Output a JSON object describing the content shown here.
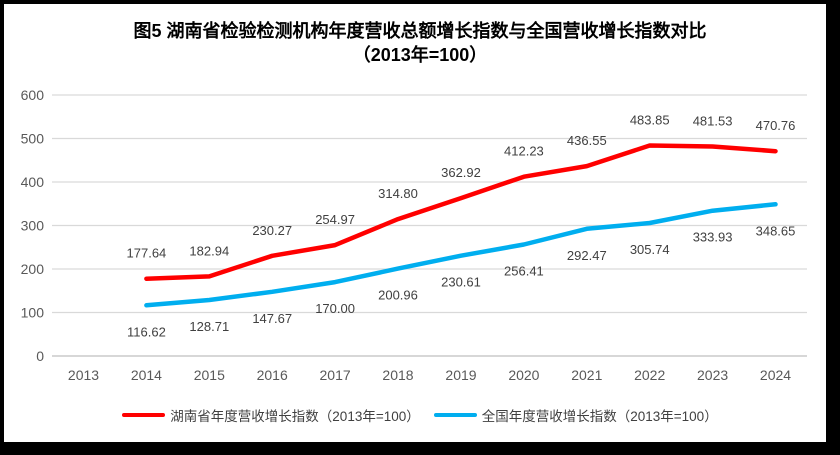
{
  "window": {
    "frame_background": "#000000",
    "canvas_background": "#ffffff"
  },
  "chart_data": {
    "type": "line",
    "title": "图5 湖南省检验检测机构年度营收总额增长指数与全国营收增长指数对比",
    "subtitle": "（2013年=100）",
    "categories": [
      "2013",
      "2014",
      "2015",
      "2016",
      "2017",
      "2018",
      "2019",
      "2020",
      "2021",
      "2022",
      "2023",
      "2024"
    ],
    "ylim": [
      0,
      600
    ],
    "y_ticks": [
      0,
      100,
      200,
      300,
      400,
      500,
      600
    ],
    "grid": "horizontal-only",
    "legend_position": "bottom-center",
    "colors": {
      "gridline": "#D9D9D9",
      "axis_line": "#BFBFBF",
      "tick_label": "#595959",
      "data_label": "#404040"
    },
    "series": [
      {
        "id": "hunan",
        "name": "湖南省年度营收增长指数（2013年=100）",
        "color": "#FF0000",
        "label_side": "above",
        "values": [
          null,
          177.64,
          182.94,
          230.27,
          254.97,
          314.8,
          362.92,
          412.23,
          436.55,
          483.85,
          481.53,
          470.76
        ]
      },
      {
        "id": "national",
        "name": "全国年度营收增长指数（2013年=100）",
        "color": "#00AEEF",
        "label_side": "below",
        "values": [
          null,
          116.62,
          128.71,
          147.67,
          170.0,
          200.96,
          230.61,
          256.41,
          292.47,
          305.74,
          333.93,
          348.65
        ]
      }
    ]
  }
}
